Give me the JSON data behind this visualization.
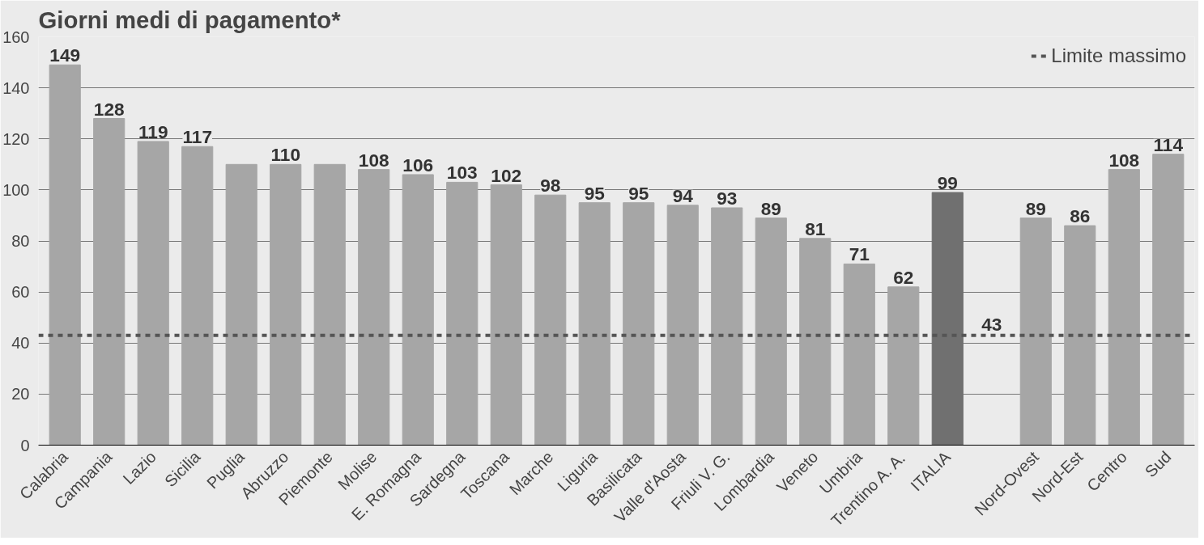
{
  "chart_data": {
    "type": "bar",
    "title": "Giorni medi di pagamento*",
    "categories": [
      "Calabria",
      "Campania",
      "Lazio",
      "Sicilia",
      "Puglia",
      "Abruzzo",
      "Piemonte",
      "Molise",
      "E. Romagna",
      "Sardegna",
      "Toscana",
      "Marche",
      "Liguria",
      "Basilicata",
      "Valle d'Aosta",
      "Friuli V. G.",
      "Lombardia",
      "Veneto",
      "Umbria",
      "Trentino A. A.",
      "ITALIA",
      null,
      "Nord-Ovest",
      "Nord-Est",
      "Centro",
      "Sud"
    ],
    "values": [
      149,
      128,
      119,
      117,
      110,
      110,
      110,
      108,
      106,
      103,
      102,
      98,
      95,
      95,
      94,
      93,
      89,
      81,
      71,
      62,
      99,
      null,
      89,
      86,
      108,
      114
    ],
    "colors": [
      "#a6a6a6",
      "#a6a6a6",
      "#a6a6a6",
      "#a6a6a6",
      "#a6a6a6",
      "#a6a6a6",
      "#a6a6a6",
      "#a6a6a6",
      "#a6a6a6",
      "#a6a6a6",
      "#a6a6a6",
      "#a6a6a6",
      "#a6a6a6",
      "#a6a6a6",
      "#a6a6a6",
      "#a6a6a6",
      "#a6a6a6",
      "#a6a6a6",
      "#a6a6a6",
      "#a6a6a6",
      "#707070",
      "#a6a6a6",
      "#a6a6a6",
      "#a6a6a6",
      "#a6a6a6",
      "#a6a6a6"
    ],
    "value_labels": [
      "149",
      "128",
      "119",
      "117",
      null,
      "110",
      null,
      "108",
      "106",
      "103",
      "102",
      "98",
      "95",
      "95",
      "94",
      "93",
      "89",
      "81",
      "71",
      "62",
      "99",
      null,
      "89",
      "86",
      "108",
      "114"
    ],
    "ylim": [
      0,
      160
    ],
    "yticks": [
      0,
      20,
      40,
      60,
      80,
      100,
      120,
      140,
      160
    ],
    "grid": "y",
    "ref_lines": [
      {
        "axis": "y",
        "value": 43,
        "label": "Limite massimo",
        "color": "#555555",
        "line_style": "dashed"
      }
    ],
    "annotations": [
      {
        "text": "43",
        "y": 43
      }
    ],
    "legend": "top right"
  }
}
